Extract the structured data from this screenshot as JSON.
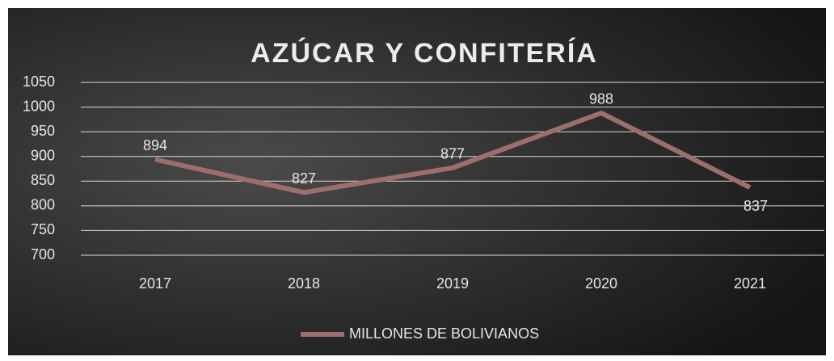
{
  "chart_data": {
    "type": "line",
    "title": "AZÚCAR Y CONFITERÍA",
    "categories": [
      "2017",
      "2018",
      "2019",
      "2020",
      "2021"
    ],
    "series": [
      {
        "name": "MILLONES DE BOLIVIANOS",
        "color": "#9c6e6e",
        "values": [
          894,
          827,
          877,
          988,
          837
        ]
      }
    ],
    "ylim": [
      700,
      1050
    ],
    "yticks": [
      700,
      750,
      800,
      850,
      900,
      950,
      1000,
      1050
    ],
    "grid": true,
    "legend": "bottom"
  }
}
